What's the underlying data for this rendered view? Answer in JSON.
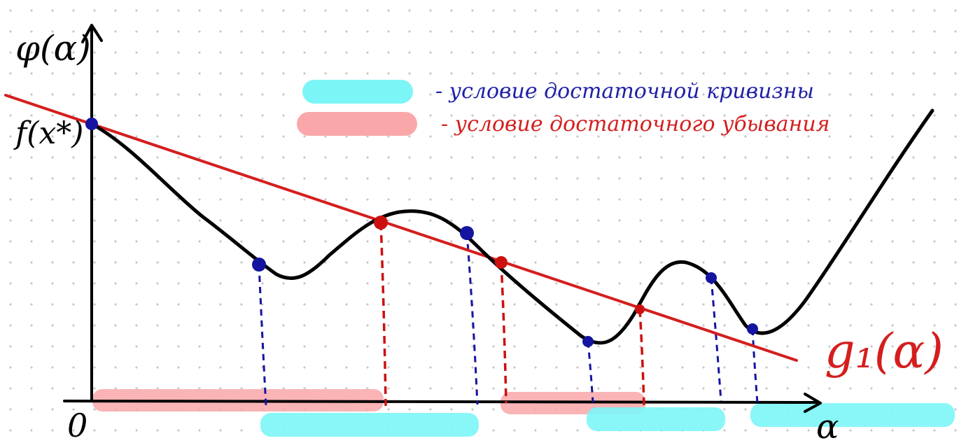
{
  "labels": {
    "y_axis": "φ(α)",
    "f_at_x": "f(x*)",
    "origin": "0",
    "x_axis": "α",
    "line_name": "g₁(α)"
  },
  "legend": [
    {
      "text": "- условие достаточной кривизны",
      "color": "#1f1fa8",
      "swatch": "#7cf5f7"
    },
    {
      "text": "- условие достаточного убывания",
      "color": "#d41e1e",
      "swatch": "#f9a7a8"
    }
  ],
  "colors": {
    "curve": "#000000",
    "line": "#d41e1e",
    "curvature_points": "#1414a0",
    "decrease_points": "#cc1010",
    "grid_dots": "#c8c8c8"
  }
}
